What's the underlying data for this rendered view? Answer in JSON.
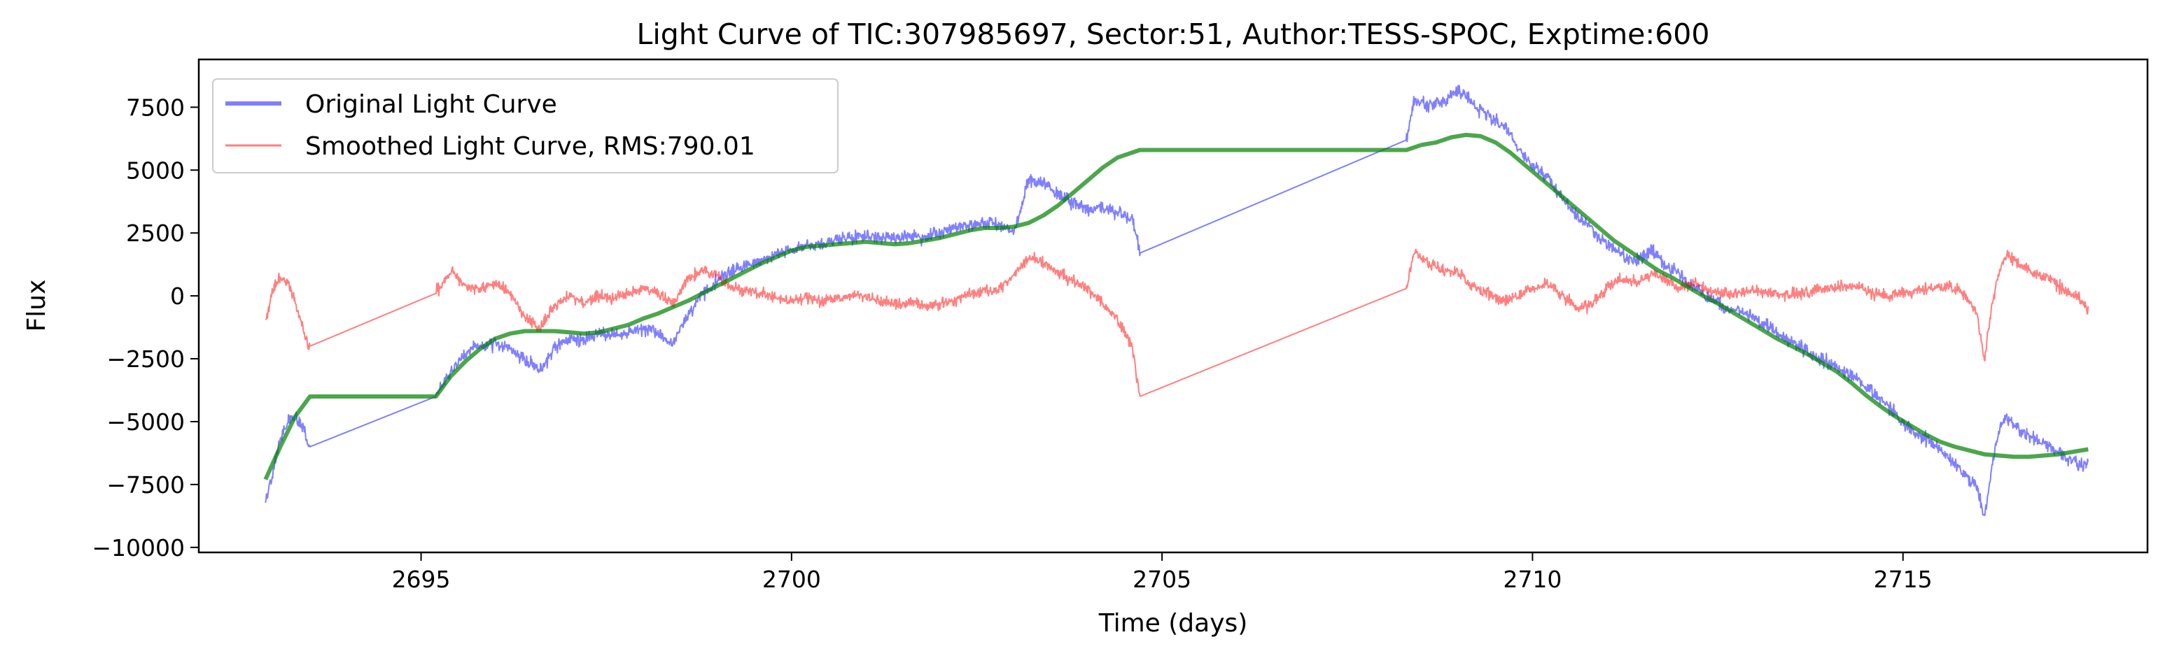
{
  "chart_data": {
    "type": "line",
    "title": "Light Curve of TIC:307985697, Sector:51, Author:TESS-SPOC, Exptime:600",
    "xlabel": "Time (days)",
    "ylabel": "Flux",
    "xlim": [
      2692.0,
      2718.3
    ],
    "ylim": [
      -10200,
      9400
    ],
    "xticks": [
      2695,
      2700,
      2705,
      2710,
      2715
    ],
    "yticks": [
      -10000,
      -7500,
      -5000,
      -2500,
      0,
      2500,
      5000,
      7500
    ],
    "grid": false,
    "legend_position": "top-left",
    "segments": [
      [
        2692.9,
        2693.5
      ],
      [
        2695.2,
        2704.7
      ],
      [
        2708.3,
        2717.5
      ]
    ],
    "series": [
      {
        "name": "Original Light Curve",
        "color": "#0000ff",
        "opacity": 0.5,
        "x": [
          2692.9,
          2693.0,
          2693.1,
          2693.2,
          2693.3,
          2693.4,
          2693.45,
          2693.5,
          2695.2,
          2695.4,
          2695.6,
          2695.8,
          2696.0,
          2696.2,
          2696.4,
          2696.6,
          2696.8,
          2697.0,
          2697.2,
          2697.4,
          2697.6,
          2697.8,
          2698.0,
          2698.2,
          2698.4,
          2698.6,
          2698.8,
          2699.0,
          2699.2,
          2699.4,
          2699.6,
          2699.8,
          2700.0,
          2700.2,
          2700.4,
          2700.6,
          2700.8,
          2701.0,
          2701.2,
          2701.4,
          2701.6,
          2701.8,
          2702.0,
          2702.2,
          2702.4,
          2702.6,
          2702.8,
          2703.0,
          2703.1,
          2703.2,
          2703.4,
          2703.6,
          2703.8,
          2704.0,
          2704.2,
          2704.4,
          2704.6,
          2704.7,
          2708.3,
          2708.4,
          2708.6,
          2708.8,
          2709.0,
          2709.2,
          2709.4,
          2709.6,
          2709.8,
          2710.0,
          2710.2,
          2710.4,
          2710.6,
          2710.8,
          2711.0,
          2711.2,
          2711.4,
          2711.6,
          2711.8,
          2712.0,
          2712.2,
          2712.4,
          2712.6,
          2712.8,
          2713.0,
          2713.2,
          2713.4,
          2713.6,
          2713.8,
          2714.0,
          2714.2,
          2714.4,
          2714.6,
          2714.8,
          2715.0,
          2715.2,
          2715.4,
          2715.6,
          2715.8,
          2716.0,
          2716.1,
          2716.2,
          2716.3,
          2716.4,
          2716.6,
          2716.8,
          2717.0,
          2717.2,
          2717.4,
          2717.5
        ],
        "y": [
          -8200,
          -7000,
          -5600,
          -5000,
          -4800,
          -5200,
          -5800,
          -6000,
          -4000,
          -3000,
          -2300,
          -2000,
          -1900,
          -2100,
          -2500,
          -3000,
          -2100,
          -1700,
          -1800,
          -1500,
          -1600,
          -1400,
          -1300,
          -1500,
          -1900,
          -800,
          100,
          600,
          1000,
          1200,
          1400,
          1700,
          1800,
          2000,
          2100,
          2200,
          2300,
          2400,
          2300,
          2300,
          2400,
          2300,
          2500,
          2700,
          2800,
          2900,
          2800,
          2500,
          3500,
          4600,
          4500,
          4000,
          3700,
          3500,
          3500,
          3300,
          3000,
          1700,
          6200,
          7800,
          7600,
          7700,
          8200,
          7600,
          7200,
          6800,
          5900,
          5200,
          4700,
          3900,
          3200,
          2600,
          2100,
          1600,
          1400,
          1800,
          1200,
          800,
          300,
          -100,
          -500,
          -600,
          -900,
          -1300,
          -1700,
          -2000,
          -2400,
          -2700,
          -3000,
          -3300,
          -3900,
          -4400,
          -5000,
          -5500,
          -5900,
          -6400,
          -7000,
          -7600,
          -8900,
          -6800,
          -5300,
          -4800,
          -5400,
          -5700,
          -6000,
          -6400,
          -6800,
          -6500
        ]
      },
      {
        "name": "Smoothed Light Curve, RMS:790.01",
        "color": "#ff0000",
        "opacity": 0.5,
        "x": [
          2692.9,
          2693.0,
          2693.1,
          2693.2,
          2693.3,
          2693.4,
          2693.45,
          2693.5,
          2695.2,
          2695.4,
          2695.6,
          2695.8,
          2696.0,
          2696.2,
          2696.4,
          2696.6,
          2696.8,
          2697.0,
          2697.2,
          2697.4,
          2697.6,
          2697.8,
          2698.0,
          2698.2,
          2698.4,
          2698.6,
          2698.8,
          2699.0,
          2699.2,
          2699.4,
          2699.6,
          2699.8,
          2700.0,
          2700.2,
          2700.4,
          2700.6,
          2700.8,
          2701.0,
          2701.2,
          2701.4,
          2701.6,
          2701.8,
          2702.0,
          2702.2,
          2702.4,
          2702.6,
          2702.8,
          2703.0,
          2703.1,
          2703.2,
          2703.4,
          2703.6,
          2703.8,
          2704.0,
          2704.2,
          2704.4,
          2704.6,
          2704.7,
          2708.3,
          2708.4,
          2708.6,
          2708.8,
          2709.0,
          2709.2,
          2709.4,
          2709.6,
          2709.8,
          2710.0,
          2710.2,
          2710.4,
          2710.6,
          2710.8,
          2711.0,
          2711.2,
          2711.4,
          2711.6,
          2711.8,
          2712.0,
          2712.2,
          2712.4,
          2712.6,
          2712.8,
          2713.0,
          2713.2,
          2713.4,
          2713.6,
          2713.8,
          2714.0,
          2714.2,
          2714.4,
          2714.6,
          2714.8,
          2715.0,
          2715.2,
          2715.4,
          2715.6,
          2715.8,
          2716.0,
          2716.1,
          2716.2,
          2716.3,
          2716.4,
          2716.6,
          2716.8,
          2717.0,
          2717.2,
          2717.4,
          2717.5
        ],
        "y": [
          -1000,
          200,
          800,
          500,
          -200,
          -1200,
          -1800,
          -2000,
          100,
          1000,
          400,
          300,
          500,
          100,
          -900,
          -1300,
          -400,
          0,
          -300,
          0,
          -100,
          100,
          300,
          100,
          -400,
          700,
          1000,
          800,
          300,
          200,
          100,
          -100,
          -200,
          0,
          -200,
          -100,
          0,
          0,
          -200,
          -400,
          -200,
          -400,
          -300,
          -200,
          100,
          200,
          300,
          800,
          1200,
          1500,
          1300,
          900,
          600,
          300,
          -300,
          -1000,
          -2000,
          -4000,
          300,
          1800,
          1300,
          1000,
          900,
          300,
          100,
          -200,
          0,
          300,
          500,
          0,
          -500,
          -300,
          300,
          700,
          500,
          900,
          600,
          300,
          500,
          200,
          100,
          100,
          200,
          100,
          0,
          100,
          200,
          300,
          400,
          300,
          100,
          0,
          100,
          200,
          300,
          400,
          100,
          -700,
          -2600,
          -300,
          1000,
          1700,
          1200,
          900,
          600,
          200,
          -200,
          -500
        ]
      },
      {
        "name": "",
        "color": "#008000",
        "opacity": 0.7,
        "x": [
          2692.9,
          2693.1,
          2693.3,
          2693.5,
          2695.2,
          2695.4,
          2695.6,
          2695.8,
          2696.0,
          2696.2,
          2696.4,
          2696.6,
          2696.8,
          2697.0,
          2697.2,
          2697.4,
          2697.6,
          2697.8,
          2698.0,
          2698.2,
          2698.4,
          2698.6,
          2698.8,
          2699.0,
          2699.2,
          2699.4,
          2699.6,
          2699.8,
          2700.0,
          2700.2,
          2700.4,
          2700.6,
          2700.8,
          2701.0,
          2701.2,
          2701.4,
          2701.6,
          2701.8,
          2702.0,
          2702.2,
          2702.4,
          2702.6,
          2702.8,
          2703.0,
          2703.2,
          2703.4,
          2703.6,
          2703.8,
          2704.0,
          2704.2,
          2704.4,
          2704.7,
          2708.3,
          2708.5,
          2708.7,
          2708.9,
          2709.1,
          2709.3,
          2709.5,
          2709.7,
          2709.9,
          2710.1,
          2710.3,
          2710.5,
          2710.7,
          2710.9,
          2711.1,
          2711.3,
          2711.5,
          2711.7,
          2711.9,
          2712.1,
          2712.3,
          2712.5,
          2712.7,
          2712.9,
          2713.1,
          2713.3,
          2713.5,
          2713.7,
          2713.9,
          2714.1,
          2714.3,
          2714.5,
          2714.7,
          2714.9,
          2715.1,
          2715.3,
          2715.5,
          2715.7,
          2715.9,
          2716.1,
          2716.3,
          2716.5,
          2716.7,
          2716.9,
          2717.1,
          2717.3,
          2717.5
        ],
        "y": [
          -7300,
          -6000,
          -4800,
          -4000,
          -4000,
          -3200,
          -2600,
          -2100,
          -1700,
          -1500,
          -1400,
          -1400,
          -1400,
          -1450,
          -1500,
          -1450,
          -1300,
          -1150,
          -900,
          -700,
          -450,
          -200,
          100,
          400,
          700,
          1000,
          1300,
          1550,
          1800,
          1950,
          2000,
          2050,
          2100,
          2150,
          2100,
          2050,
          2100,
          2200,
          2300,
          2450,
          2600,
          2700,
          2700,
          2750,
          2900,
          3200,
          3600,
          4100,
          4600,
          5100,
          5500,
          5800,
          5800,
          6000,
          6100,
          6300,
          6400,
          6350,
          6100,
          5700,
          5200,
          4700,
          4200,
          3700,
          3200,
          2700,
          2200,
          1800,
          1400,
          1000,
          700,
          350,
          0,
          -300,
          -650,
          -1000,
          -1350,
          -1700,
          -2000,
          -2300,
          -2650,
          -3000,
          -3450,
          -3950,
          -4400,
          -4800,
          -5150,
          -5500,
          -5800,
          -6000,
          -6150,
          -6300,
          -6350,
          -6400,
          -6400,
          -6350,
          -6300,
          -6200,
          -6100
        ]
      }
    ]
  }
}
